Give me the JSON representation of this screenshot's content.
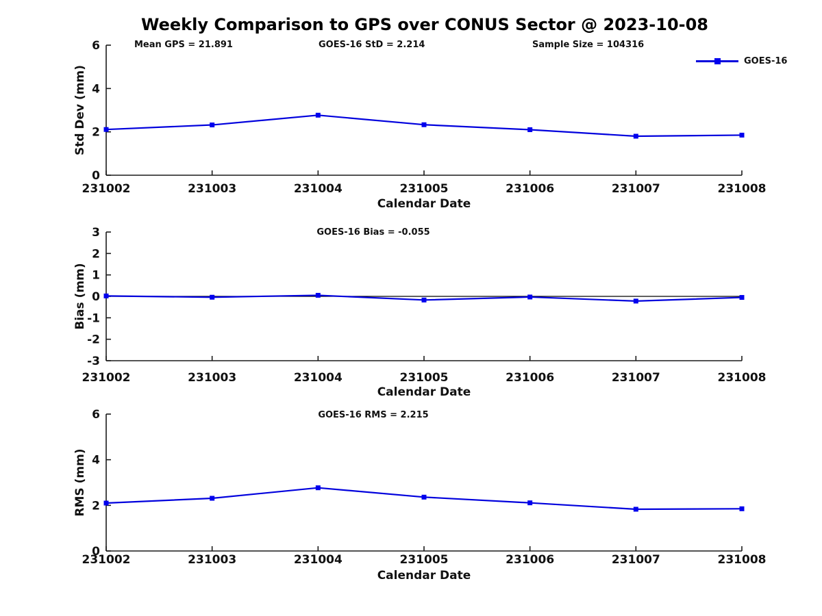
{
  "title": "Weekly Comparison to GPS over CONUS Sector @ 2023-10-08",
  "legend": {
    "label": "GOES-16"
  },
  "colors": {
    "line": "#0000dd",
    "marker_fill": "#0000ee",
    "axis": "#1a1a1a",
    "zero_line": "#000000",
    "text": "#111111"
  },
  "chart_data": [
    {
      "type": "line",
      "ylabel": "Std Dev (mm)",
      "xlabel": "Calendar Date",
      "categories": [
        "231002",
        "231003",
        "231004",
        "231005",
        "231006",
        "231007",
        "231008"
      ],
      "series": [
        {
          "name": "GOES-16",
          "values": [
            2.11,
            2.32,
            2.77,
            2.33,
            2.1,
            1.8,
            1.85
          ]
        }
      ],
      "ylim": [
        0,
        6
      ],
      "yticks": [
        0,
        2,
        4,
        6
      ],
      "grid": false,
      "legend_position": "top-right",
      "annotations": [
        "Mean GPS = 21.891",
        "GOES-16 StD = 2.214",
        "Sample Size = 104316"
      ]
    },
    {
      "type": "line",
      "ylabel": "Bias (mm)",
      "xlabel": "Calendar Date",
      "categories": [
        "231002",
        "231003",
        "231004",
        "231005",
        "231006",
        "231007",
        "231008"
      ],
      "series": [
        {
          "name": "GOES-16",
          "values": [
            0.02,
            -0.04,
            0.05,
            -0.17,
            -0.03,
            -0.22,
            -0.05
          ]
        }
      ],
      "ylim": [
        -3,
        3
      ],
      "yticks": [
        -3,
        -2,
        -1,
        0,
        1,
        2,
        3
      ],
      "grid": false,
      "zero_line": true,
      "annotations": [
        "GOES-16 Bias  = -0.055"
      ]
    },
    {
      "type": "line",
      "ylabel": "RMS (mm)",
      "xlabel": "Calendar Date",
      "categories": [
        "231002",
        "231003",
        "231004",
        "231005",
        "231006",
        "231007",
        "231008"
      ],
      "series": [
        {
          "name": "GOES-16",
          "values": [
            2.1,
            2.31,
            2.77,
            2.36,
            2.11,
            1.83,
            1.85
          ]
        }
      ],
      "ylim": [
        0,
        6
      ],
      "yticks": [
        0,
        2,
        4,
        6
      ],
      "grid": false,
      "annotations": [
        "GOES-16 RMS = 2.215"
      ]
    }
  ]
}
